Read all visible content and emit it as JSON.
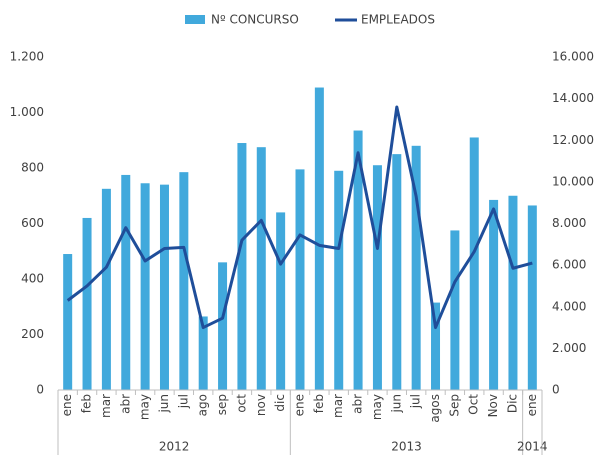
{
  "chart_data": {
    "type": "bar_line",
    "groups": [
      {
        "label": "2012",
        "categories": [
          "ene",
          "feb",
          "mar",
          "abr",
          "may",
          "jun",
          "jul",
          "ago",
          "sep",
          "oct",
          "nov",
          "dic"
        ]
      },
      {
        "label": "2013",
        "categories": [
          "ene",
          "feb",
          "mar",
          "abr",
          "may",
          "jun",
          "jul",
          "agos",
          "Sep",
          "Oct",
          "Nov",
          "Dic"
        ]
      },
      {
        "label": "2014",
        "categories": [
          "ene"
        ]
      }
    ],
    "series": [
      {
        "name": "Nº CONCURSO",
        "type": "bar",
        "color": "#41a9dc",
        "axis": "y",
        "values": [
          490,
          620,
          725,
          775,
          745,
          740,
          785,
          265,
          460,
          890,
          875,
          640,
          795,
          1090,
          790,
          935,
          810,
          850,
          880,
          315,
          575,
          910,
          685,
          700,
          665
        ]
      },
      {
        "name": "EMPLEADOS",
        "type": "line",
        "color": "#1f4e9a",
        "axis": "y2",
        "values": [
          4300,
          5000,
          5900,
          7800,
          6200,
          6800,
          6850,
          3000,
          3450,
          7200,
          8150,
          6050,
          7450,
          6950,
          6800,
          11400,
          6800,
          13600,
          9300,
          3000,
          5200,
          6650,
          8700,
          5850,
          6100
        ]
      }
    ],
    "ylim": [
      0,
      1200
    ],
    "yticks": [
      0,
      200,
      400,
      600,
      800,
      {
        "value": 1000,
        "label": "1.000"
      },
      {
        "value": 1200,
        "label": "1.200"
      }
    ],
    "y2lim": [
      0,
      16000
    ],
    "y2ticks": [
      0,
      {
        "value": 2000,
        "label": "2.000"
      },
      {
        "value": 4000,
        "label": "4.000"
      },
      {
        "value": 6000,
        "label": "6.000"
      },
      {
        "value": 8000,
        "label": "8.000"
      },
      {
        "value": 10000,
        "label": "10.000"
      },
      {
        "value": 12000,
        "label": "12.000"
      },
      {
        "value": 14000,
        "label": "14.000"
      },
      {
        "value": 16000,
        "label": "16.000"
      }
    ],
    "legend": "top",
    "grid": false
  }
}
